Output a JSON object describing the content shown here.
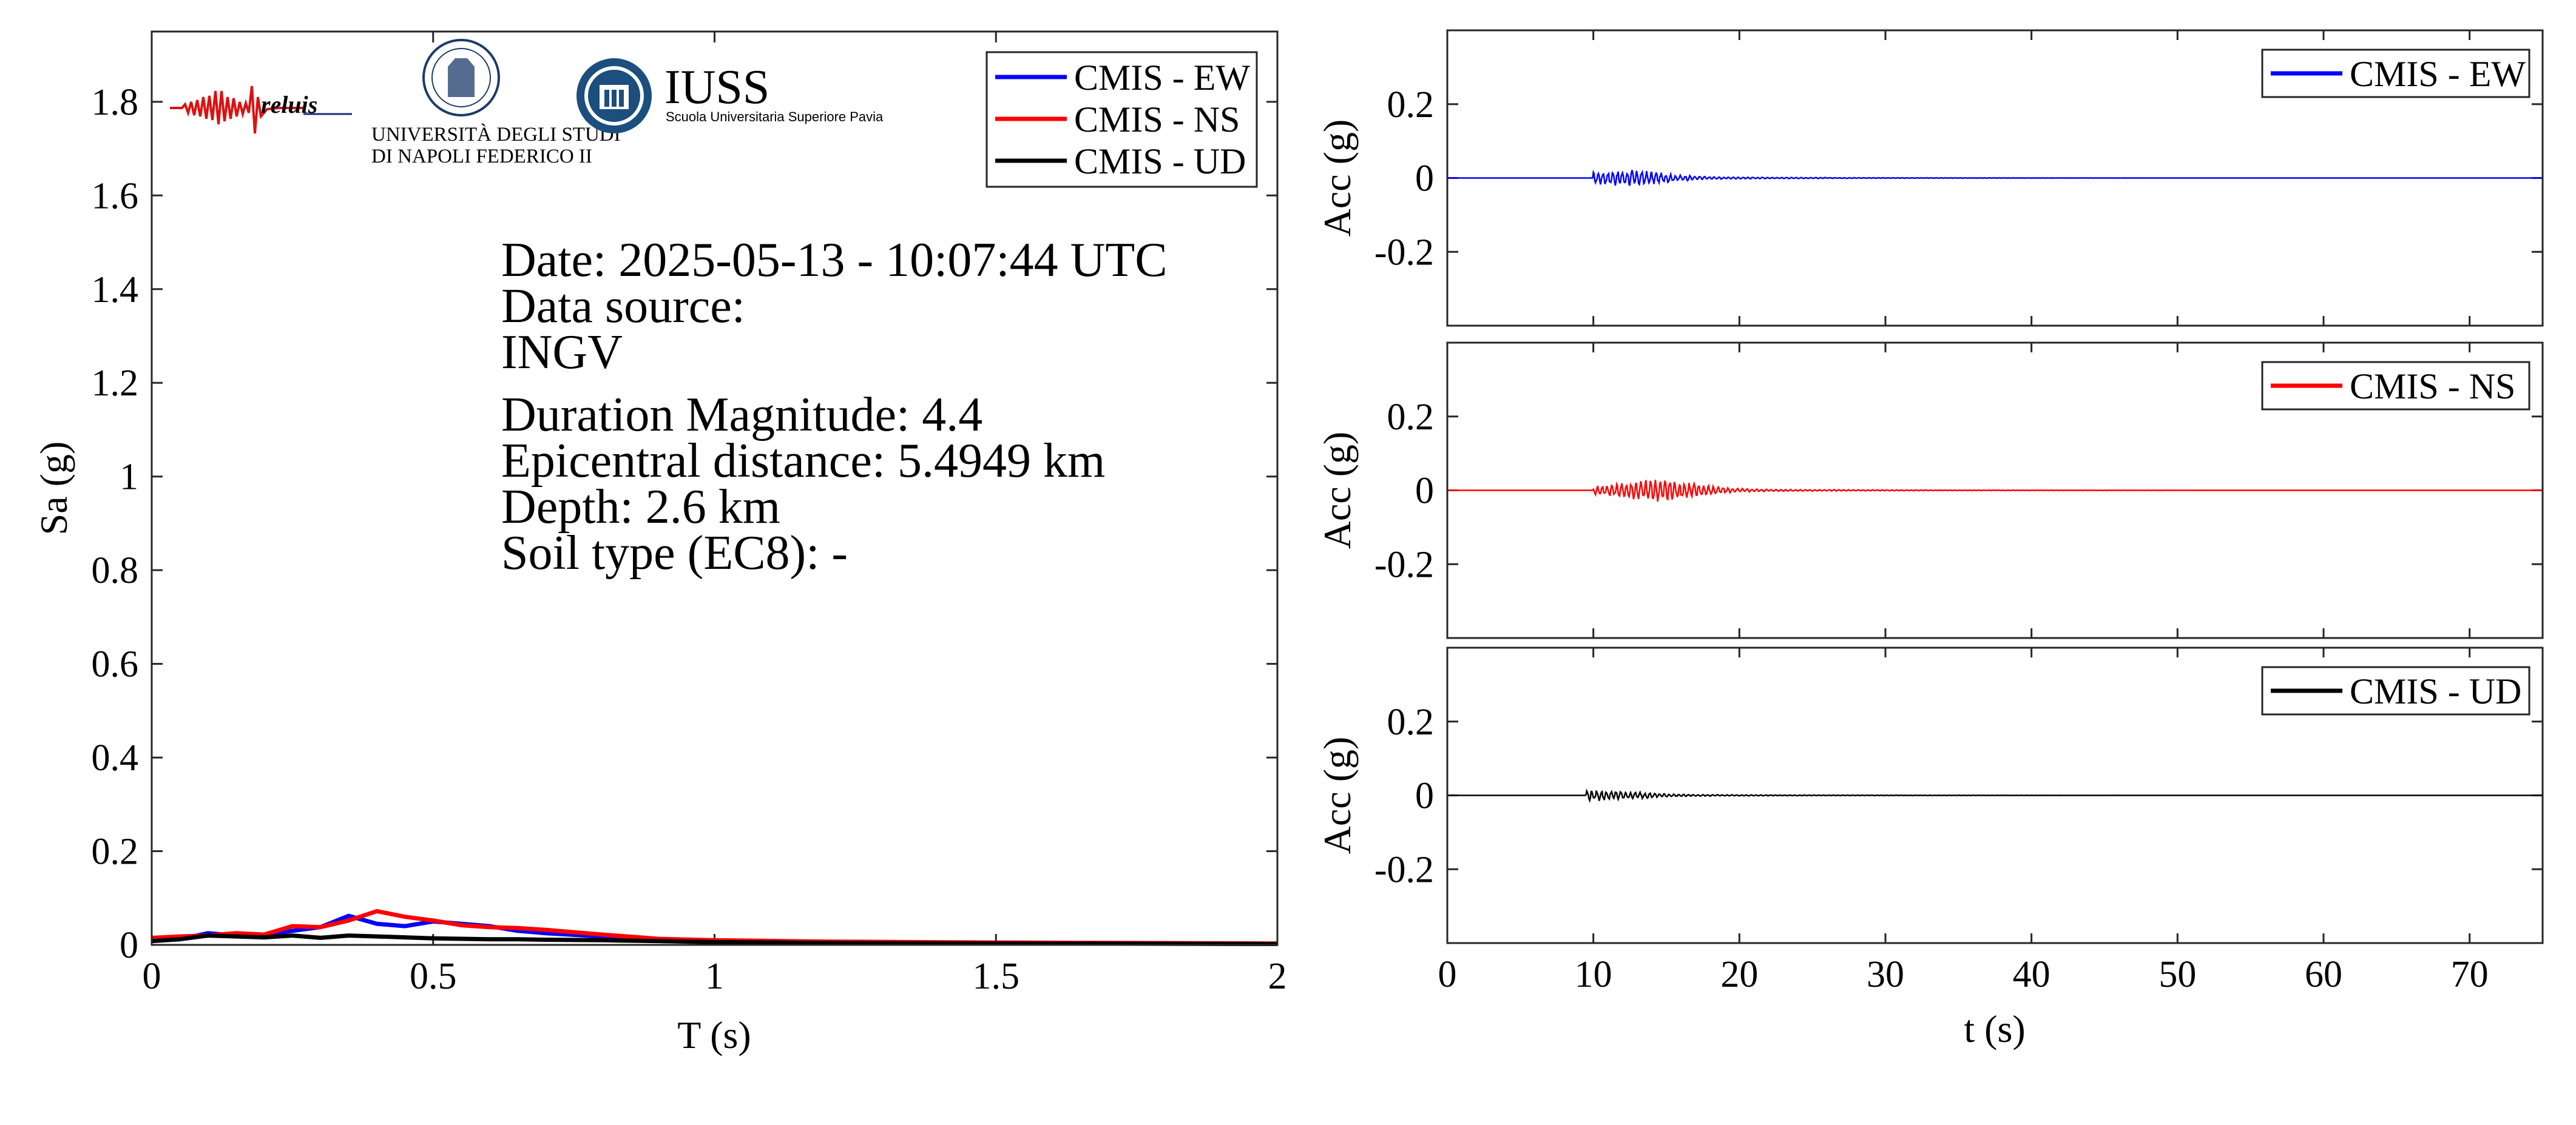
{
  "spectrum": {
    "xlabel": "T (s)",
    "ylabel": "Sa (g)",
    "xlim": [
      0,
      2
    ],
    "ylim": [
      0,
      1.95
    ],
    "xticks": [
      0,
      0.5,
      1,
      1.5,
      2
    ],
    "xtick_labels": [
      "0",
      "0.5",
      "1",
      "1.5",
      "2"
    ],
    "yticks": [
      0,
      0.2,
      0.4,
      0.6,
      0.8,
      1,
      1.2,
      1.4,
      1.6,
      1.8
    ],
    "ytick_labels": [
      "0",
      "0.2",
      "0.4",
      "0.6",
      "0.8",
      "1",
      "1.2",
      "1.4",
      "1.6",
      "1.8"
    ],
    "legend": [
      "CMIS - EW",
      "CMIS - NS",
      "CMIS - UD"
    ],
    "info": {
      "date": "Date: 2025-05-13 - 10:07:44 UTC",
      "source_label": "Data source:",
      "source": "INGV",
      "magnitude": "Duration Magnitude: 4.4",
      "distance": "Epicentral distance: 5.4949 km",
      "depth": "Depth: 2.6 km",
      "soil": "Soil type (EC8): -"
    },
    "logos": {
      "reluis": "reluis",
      "unina_line1": "UNIVERSITÀ DEGLI STUDI",
      "unina_line2": "DI NAPOLI FEDERICO II",
      "iuss": "IUSS",
      "iuss_sub": "Scuola Universitaria Superiore Pavia"
    }
  },
  "waveforms": {
    "xlabel": "t (s)",
    "ylabel": "Acc (g)",
    "xlim": [
      0,
      75
    ],
    "xticks": [
      0,
      10,
      20,
      30,
      40,
      50,
      60,
      70
    ],
    "xtick_labels": [
      "0",
      "10",
      "20",
      "30",
      "40",
      "50",
      "60",
      "70"
    ],
    "yticks": [
      0.2,
      0,
      -0.2
    ],
    "ytick_labels": [
      "0.2",
      "0",
      "-0.2"
    ],
    "ylim": [
      -0.4,
      0.4
    ],
    "panels": [
      {
        "legend": "CMIS - EW"
      },
      {
        "legend": "CMIS - NS"
      },
      {
        "legend": "CMIS - UD"
      }
    ]
  },
  "colors": {
    "EW": "#0000ff",
    "NS": "#ff0000",
    "UD": "#000000"
  },
  "chart_data": [
    {
      "type": "line",
      "xlabel": "T (s)",
      "ylabel": "Sa (g)",
      "xlim": [
        0,
        2
      ],
      "ylim": [
        0,
        1.95
      ],
      "series": [
        {
          "name": "CMIS - EW",
          "x": [
            0,
            0.05,
            0.1,
            0.15,
            0.2,
            0.25,
            0.3,
            0.35,
            0.4,
            0.45,
            0.5,
            0.55,
            0.6,
            0.65,
            0.7,
            0.8,
            0.9,
            1.0,
            1.2,
            1.5,
            2.0
          ],
          "y": [
            0.01,
            0.012,
            0.025,
            0.02,
            0.022,
            0.03,
            0.038,
            0.062,
            0.045,
            0.04,
            0.05,
            0.045,
            0.04,
            0.03,
            0.025,
            0.018,
            0.012,
            0.008,
            0.006,
            0.004,
            0.002
          ]
        },
        {
          "name": "CMIS - NS",
          "x": [
            0,
            0.05,
            0.1,
            0.15,
            0.2,
            0.25,
            0.3,
            0.35,
            0.4,
            0.45,
            0.5,
            0.55,
            0.6,
            0.65,
            0.7,
            0.8,
            0.9,
            1.0,
            1.2,
            1.5,
            2.0
          ],
          "y": [
            0.015,
            0.018,
            0.02,
            0.025,
            0.022,
            0.04,
            0.038,
            0.052,
            0.072,
            0.06,
            0.052,
            0.042,
            0.038,
            0.036,
            0.032,
            0.022,
            0.013,
            0.01,
            0.007,
            0.005,
            0.003
          ]
        },
        {
          "name": "CMIS - UD",
          "x": [
            0,
            0.05,
            0.1,
            0.15,
            0.2,
            0.25,
            0.3,
            0.35,
            0.4,
            0.45,
            0.5,
            0.55,
            0.6,
            0.65,
            0.7,
            0.8,
            0.9,
            1.0,
            1.2,
            1.5,
            2.0
          ],
          "y": [
            0.008,
            0.012,
            0.02,
            0.018,
            0.016,
            0.02,
            0.015,
            0.02,
            0.018,
            0.016,
            0.014,
            0.013,
            0.012,
            0.012,
            0.011,
            0.01,
            0.008,
            0.006,
            0.004,
            0.003,
            0.002
          ]
        }
      ]
    },
    {
      "type": "line",
      "xlabel": "t (s)",
      "ylabel": "Acc (g)",
      "xlim": [
        0,
        75
      ],
      "ylim": [
        -0.4,
        0.4
      ],
      "series": [
        {
          "name": "CMIS - EW",
          "onset": 10,
          "peak": 0.012,
          "decay_end": 30,
          "peak_time": 12.5
        },
        {
          "name": "CMIS - NS",
          "onset": 10,
          "peak": 0.018,
          "decay_end": 30,
          "peak_time": 14.8
        },
        {
          "name": "CMIS - UD",
          "onset": 9.5,
          "peak": 0.008,
          "decay_end": 25,
          "peak_time": 10.8
        }
      ]
    }
  ]
}
